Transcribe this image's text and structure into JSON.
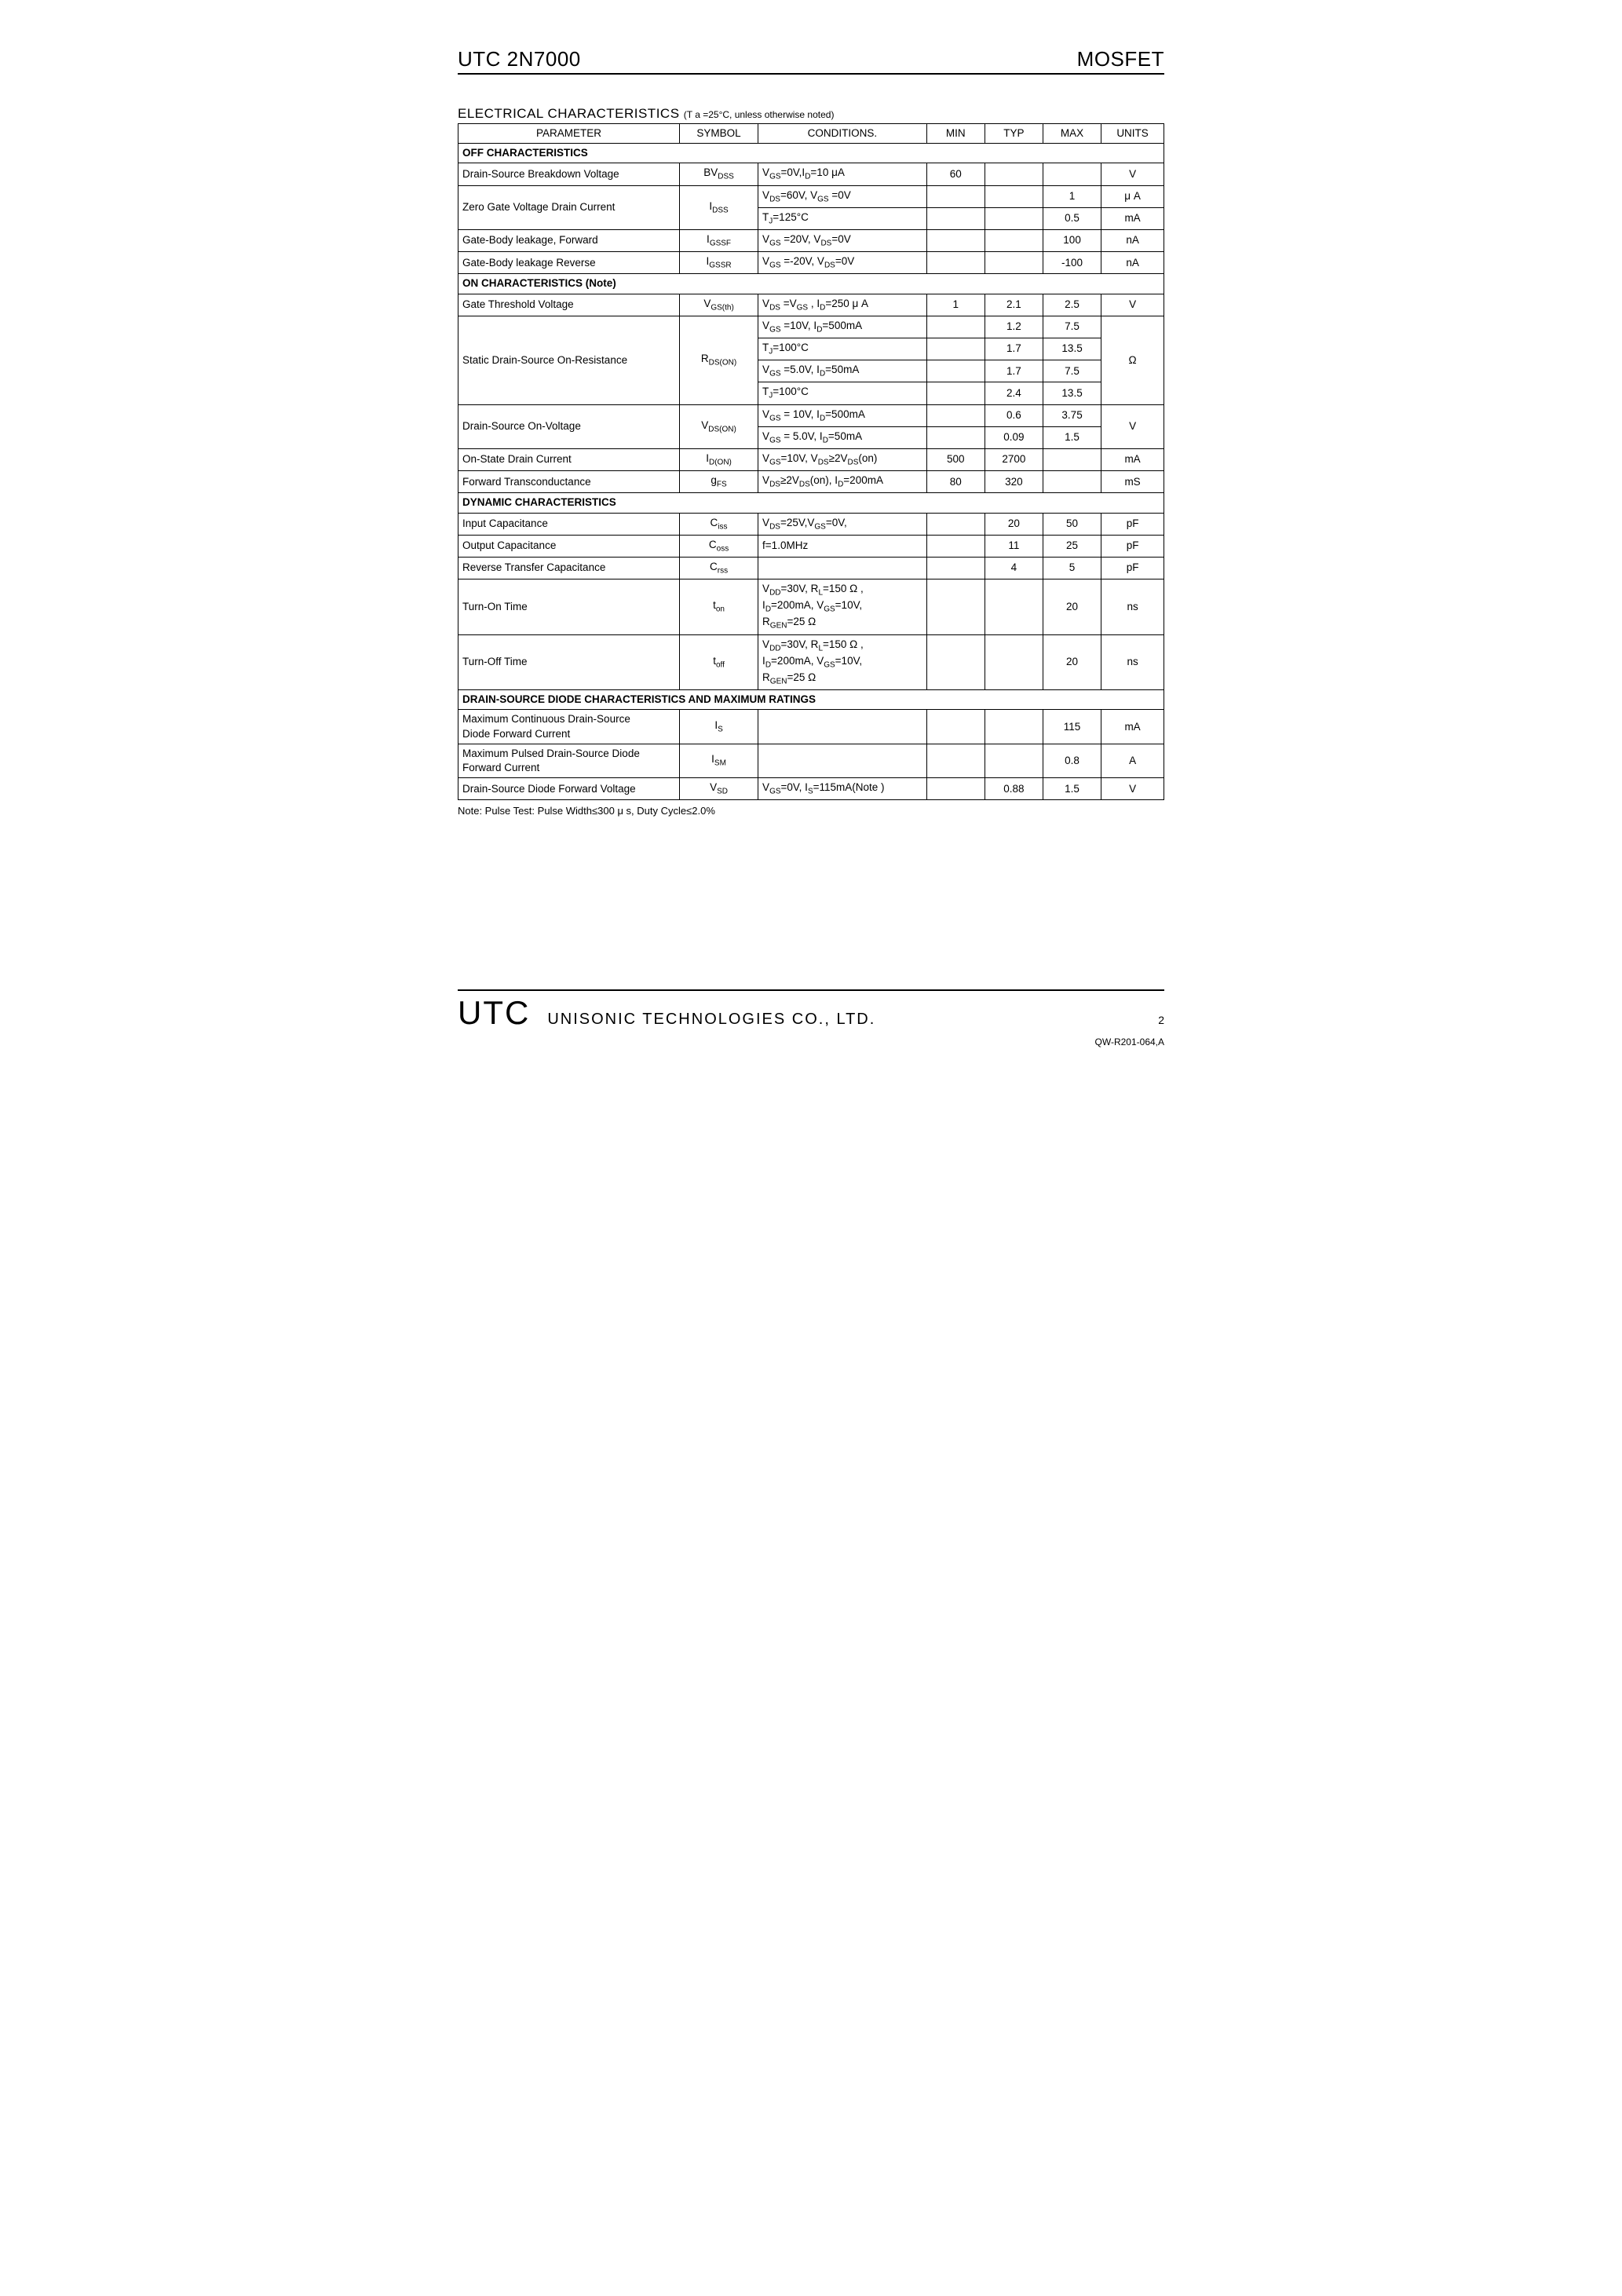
{
  "header": {
    "left": "UTC 2N7000",
    "right": "MOSFET"
  },
  "section_title": "ELECTRICAL CHARACTERISTICS",
  "section_cond": "(T a =25°C, unless otherwise noted)",
  "columns": {
    "parameter": "PARAMETER",
    "symbol": "SYMBOL",
    "conditions": "CONDITIONS.",
    "min": "MIN",
    "typ": "TYP",
    "max": "MAX",
    "units": "UNITS"
  },
  "groups": {
    "off": "OFF CHARACTERISTICS",
    "on": "ON CHARACTERISTICS (Note)",
    "dyn": "DYNAMIC CHARACTERISTICS",
    "diode": "DRAIN-SOURCE DIODE CHARACTERISTICS AND MAXIMUM RATINGS"
  },
  "rows": {
    "bvdss": {
      "param": "Drain-Source Breakdown Voltage",
      "sym": "BVDSS",
      "cond": "VGS=0V,ID=10 μA",
      "min": "60",
      "typ": "",
      "max": "",
      "unit": "V"
    },
    "idss1": {
      "param": "Zero Gate Voltage Drain Current",
      "sym": "IDSS",
      "cond": "VDS=60V, VGS =0V",
      "min": "",
      "typ": "",
      "max": "1",
      "unit": "μ A"
    },
    "idss2": {
      "cond": "TJ=125°C",
      "min": "",
      "typ": "",
      "max": "0.5",
      "unit": "mA"
    },
    "igssf": {
      "param": "Gate-Body leakage, Forward",
      "sym": "IGSSF",
      "cond": "VGS =20V, VDS=0V",
      "min": "",
      "typ": "",
      "max": "100",
      "unit": "nA"
    },
    "igssr": {
      "param": "Gate-Body leakage Reverse",
      "sym": "IGSSR",
      "cond": "VGS =-20V, VDS=0V",
      "min": "",
      "typ": "",
      "max": "-100",
      "unit": "nA"
    },
    "vgsth": {
      "param": "Gate Threshold Voltage",
      "sym": "VGS(th)",
      "cond": "VDS =VGS , ID=250 μ A",
      "min": "1",
      "typ": "2.1",
      "max": "2.5",
      "unit": "V"
    },
    "rds1": {
      "param": "Static Drain-Source On-Resistance",
      "sym": "RDS(ON)",
      "cond": "VGS =10V, ID=500mA",
      "min": "",
      "typ": "1.2",
      "max": "7.5",
      "unit": "Ω"
    },
    "rds2": {
      "cond": "TJ=100°C",
      "min": "",
      "typ": "1.7",
      "max": "13.5"
    },
    "rds3": {
      "cond": "VGS =5.0V, ID=50mA",
      "min": "",
      "typ": "1.7",
      "max": "7.5"
    },
    "rds4": {
      "cond": "TJ=100°C",
      "min": "",
      "typ": "2.4",
      "max": "13.5"
    },
    "vds1": {
      "param": "Drain-Source On-Voltage",
      "sym": "VDS(ON)",
      "cond": "VGS = 10V, ID=500mA",
      "min": "",
      "typ": "0.6",
      "max": "3.75",
      "unit": "V"
    },
    "vds2": {
      "cond": "VGS = 5.0V, ID=50mA",
      "min": "",
      "typ": "0.09",
      "max": "1.5"
    },
    "idon": {
      "param": "On-State Drain Current",
      "sym": "ID(ON)",
      "cond": "VGS=10V, VDS≥2VDS(on)",
      "min": "500",
      "typ": "2700",
      "max": "",
      "unit": "mA"
    },
    "gfs": {
      "param": "Forward Transconductance",
      "sym": "gFS",
      "cond": "VDS≥2VDS(on), ID=200mA",
      "min": "80",
      "typ": "320",
      "max": "",
      "unit": "mS"
    },
    "ciss": {
      "param": "Input Capacitance",
      "sym": "Ciss",
      "cond": "VDS=25V,VGS=0V,",
      "min": "",
      "typ": "20",
      "max": "50",
      "unit": "pF"
    },
    "coss": {
      "param": "Output Capacitance",
      "sym": "Coss",
      "cond": "f=1.0MHz",
      "min": "",
      "typ": "11",
      "max": "25",
      "unit": "pF"
    },
    "crss": {
      "param": "Reverse Transfer Capacitance",
      "sym": "Crss",
      "cond": "",
      "min": "",
      "typ": "4",
      "max": "5",
      "unit": "pF"
    },
    "ton": {
      "param": "Turn-On Time",
      "sym": "ton",
      "cond1": "VDD=30V, RL=150 Ω ,",
      "cond2": "ID=200mA, VGS=10V,",
      "cond3": "RGEN=25 Ω",
      "min": "",
      "typ": "",
      "max": "20",
      "unit": "ns"
    },
    "toff": {
      "param": "Turn-Off Time",
      "sym": "toff",
      "cond1": "VDD=30V, RL=150 Ω ,",
      "cond2": "ID=200mA, VGS=10V,",
      "cond3": "RGEN=25 Ω",
      "min": "",
      "typ": "",
      "max": "20",
      "unit": "ns"
    },
    "is": {
      "param1": "Maximum Continuous Drain-Source",
      "param2": "Diode Forward Current",
      "sym": "Is",
      "cond": "",
      "min": "",
      "typ": "",
      "max": "115",
      "unit": "mA"
    },
    "ism": {
      "param1": "Maximum Pulsed Drain-Source Diode",
      "param2": "Forward Current",
      "sym": "ISM",
      "cond": "",
      "min": "",
      "typ": "",
      "max": "0.8",
      "unit": "A"
    },
    "vsd": {
      "param": "Drain-Source Diode Forward Voltage",
      "sym": "VSD",
      "cond": "VGS=0V, Is=115mA(Note )",
      "min": "",
      "typ": "0.88",
      "max": "1.5",
      "unit": "V"
    }
  },
  "note": "Note: Pulse Test: Pulse Width≤300 μ s, Duty Cycle≤2.0%",
  "footer": {
    "logo": "UTC",
    "company": "UNISONIC TECHNOLOGIES   CO., LTD.",
    "page": "2",
    "code": "QW-R201-064,A"
  }
}
